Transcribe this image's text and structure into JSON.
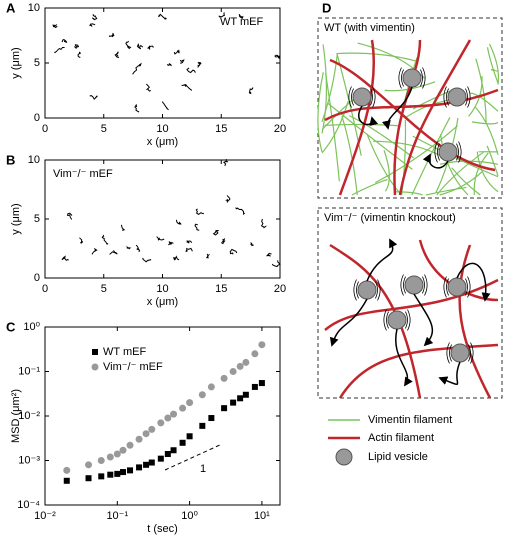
{
  "chart_data": [
    {
      "type": "scatter",
      "panel": "A",
      "annotation": "WT mEF",
      "xlabel": "x (μm)",
      "ylabel": "y (μm)",
      "color": "#000000",
      "x": [
        1,
        1.5,
        2.5,
        3,
        4,
        5.5,
        6.3,
        7,
        8,
        9.2,
        9.8,
        10.5,
        11,
        11.5,
        12.2,
        12.5,
        13,
        9,
        7.8,
        10,
        8,
        14.8,
        16.6,
        17.5,
        19.6,
        0.8,
        3.8,
        4.2
      ],
      "values": [
        8.5,
        7,
        6.5,
        5.5,
        8.3,
        7.5,
        5.5,
        6.5,
        4.8,
        6.5,
        9.3,
        4.8,
        6,
        5,
        4.5,
        2.5,
        5,
        2.5,
        1,
        1.5,
        6.5,
        9.3,
        9.3,
        2.2,
        5.7,
        6,
        2,
        9
      ],
      "xlim": [
        0,
        20
      ],
      "ylim": [
        0,
        10
      ],
      "xticks": [
        0,
        5,
        10,
        15,
        20
      ],
      "yticks": [
        0,
        5,
        10
      ]
    },
    {
      "type": "scatter",
      "panel": "B",
      "annotation": "Vim⁻/⁻ mEF",
      "xlabel": "x (μm)",
      "ylabel": "y (μm)",
      "color": "#000000",
      "x": [
        2.3,
        3,
        2,
        4,
        5,
        5.5,
        6.5,
        7,
        8,
        9,
        9.5,
        10.5,
        11,
        12,
        12.5,
        13,
        13.5,
        14.5,
        15,
        15.5,
        15.3,
        16,
        17,
        17.5,
        18.5,
        19,
        19.8,
        11.5,
        14
      ],
      "values": [
        5.3,
        3,
        1.5,
        2,
        3.5,
        2,
        4.5,
        2.5,
        2.2,
        1.5,
        3.5,
        2.8,
        1.7,
        2.2,
        3,
        4.5,
        5.5,
        4,
        3,
        7,
        9.5,
        2,
        5.5,
        3,
        5,
        2,
        1.5,
        4.5,
        2
      ],
      "xlim": [
        0,
        20
      ],
      "ylim": [
        0,
        10
      ],
      "xticks": [
        0,
        5,
        10,
        15,
        20
      ],
      "yticks": [
        0,
        5,
        10
      ]
    },
    {
      "type": "loglog",
      "panel": "C",
      "xlabel": "t (sec)",
      "ylabel": "MSD (μm²)",
      "xscale": "log",
      "yscale": "log",
      "legend": "upper left",
      "slope_label": "1",
      "x": [
        0.02,
        0.04,
        0.06,
        0.08,
        0.1,
        0.12,
        0.15,
        0.2,
        0.25,
        0.3,
        0.4,
        0.5,
        0.6,
        0.8,
        1,
        1.5,
        2,
        3,
        4,
        5,
        6,
        8,
        10
      ],
      "series": [
        {
          "name": "WT mEF",
          "color": "#000000",
          "marker": "square",
          "values": [
            0.00035,
            0.0004,
            0.00044,
            0.00048,
            0.0005,
            0.00055,
            0.0006,
            0.0007,
            0.0008,
            0.0009,
            0.0011,
            0.0014,
            0.0017,
            0.0025,
            0.0035,
            0.006,
            0.009,
            0.015,
            0.02,
            0.025,
            0.03,
            0.045,
            0.055
          ]
        },
        {
          "name": "Vim⁻/⁻ mEF",
          "color": "#999999",
          "marker": "circle",
          "values": [
            0.0006,
            0.0008,
            0.001,
            0.0012,
            0.0014,
            0.0017,
            0.0022,
            0.003,
            0.004,
            0.005,
            0.007,
            0.009,
            0.011,
            0.015,
            0.02,
            0.03,
            0.045,
            0.07,
            0.1,
            0.13,
            0.16,
            0.25,
            0.4
          ]
        }
      ],
      "xlim": [
        0.01,
        17.8
      ],
      "ylim": [
        0.0001,
        1
      ],
      "xticks": [
        {
          "value": 0.01,
          "label": "10⁻²"
        },
        {
          "value": 0.1,
          "label": "10⁻¹"
        },
        {
          "value": 1,
          "label": "10⁰"
        },
        {
          "value": 10,
          "label": "10¹"
        }
      ],
      "yticks": [
        {
          "value": 0.0001,
          "label": "10⁻⁴"
        },
        {
          "value": 0.001,
          "label": "10⁻³"
        },
        {
          "value": 0.01,
          "label": "10⁻²"
        },
        {
          "value": 0.1,
          "label": "10⁻¹"
        },
        {
          "value": 1,
          "label": "10⁰"
        }
      ]
    }
  ],
  "diagram": {
    "panel": "D",
    "boxes": [
      "WT (with vimentin)",
      "Vim⁻/⁻ (vimentin knockout)"
    ],
    "legend": [
      "Vimentin filament",
      "Actin filament",
      "Lipid vesicle"
    ]
  }
}
